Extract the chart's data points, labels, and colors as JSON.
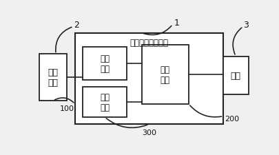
{
  "bg_color": "#f0f0f0",
  "box_color": "#ffffff",
  "box_edge": "#222222",
  "line_color": "#222222",
  "font_color": "#111111",
  "title": "助听线圈检测装置",
  "label1": "1",
  "label2": "2",
  "label3": "3",
  "label100": "100",
  "label200": "200",
  "label300": "300",
  "text_terminal": "待测\n终端",
  "text_convert": "转换\n模块",
  "text_switch": "开关\n模块",
  "text_amplify": "放大\n模块",
  "text_earphone": "耳机",
  "figsize": [
    4.06,
    2.26
  ],
  "dpi": 100
}
